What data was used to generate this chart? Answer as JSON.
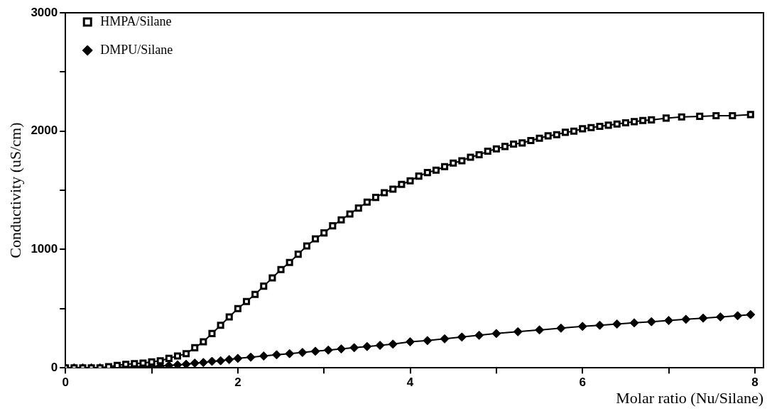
{
  "chart_data": {
    "type": "line",
    "xlabel": "Molar ratio (Nu/Silane)",
    "ylabel": "Conductivity (uS/cm)",
    "xlim": [
      0,
      8.1
    ],
    "ylim": [
      0,
      3000
    ],
    "xticks": [
      0,
      {
        "value": 1,
        "label": null
      },
      2,
      {
        "value": 3,
        "label": null
      },
      4,
      {
        "value": 5,
        "label": null
      },
      6,
      {
        "value": 7,
        "label": null
      },
      8
    ],
    "yticks": [
      0,
      {
        "value": 500,
        "label": null
      },
      1000,
      {
        "value": 1500,
        "label": null
      },
      2000,
      {
        "value": 2500,
        "label": null
      },
      3000
    ],
    "grid": false,
    "legend": "top left",
    "line_style": "solid",
    "series": [
      {
        "name": "HMPA/Silane",
        "color": "#000000",
        "marker": "square",
        "x": [
          0,
          0.1,
          0.2,
          0.3,
          0.4,
          0.5,
          0.6,
          0.7,
          0.8,
          0.9,
          1.0,
          1.1,
          1.2,
          1.3,
          1.4,
          1.5,
          1.6,
          1.7,
          1.8,
          1.9,
          2.0,
          2.1,
          2.2,
          2.3,
          2.4,
          2.5,
          2.6,
          2.7,
          2.8,
          2.9,
          3.0,
          3.1,
          3.2,
          3.3,
          3.4,
          3.5,
          3.6,
          3.7,
          3.8,
          3.9,
          4.0,
          4.1,
          4.2,
          4.3,
          4.4,
          4.5,
          4.6,
          4.7,
          4.8,
          4.9,
          5.0,
          5.1,
          5.2,
          5.3,
          5.4,
          5.5,
          5.6,
          5.7,
          5.8,
          5.9,
          6.0,
          6.1,
          6.2,
          6.3,
          6.4,
          6.5,
          6.6,
          6.7,
          6.8,
          6.97,
          7.15,
          7.36,
          7.55,
          7.74,
          7.95
        ],
        "values": [
          0,
          0,
          0,
          0,
          0,
          10,
          20,
          30,
          35,
          40,
          50,
          60,
          80,
          100,
          120,
          170,
          220,
          290,
          360,
          430,
          500,
          560,
          620,
          690,
          760,
          830,
          890,
          960,
          1030,
          1090,
          1140,
          1200,
          1250,
          1300,
          1350,
          1400,
          1440,
          1480,
          1510,
          1550,
          1580,
          1620,
          1650,
          1670,
          1700,
          1730,
          1750,
          1780,
          1800,
          1830,
          1850,
          1870,
          1890,
          1900,
          1920,
          1940,
          1960,
          1970,
          1990,
          2000,
          2020,
          2030,
          2040,
          2050,
          2060,
          2070,
          2080,
          2090,
          2095,
          2110,
          2120,
          2125,
          2130,
          2130,
          2140
        ]
      },
      {
        "name": "DMPU/Silane",
        "color": "#000000",
        "marker": "diamond",
        "x": [
          0,
          0.1,
          0.2,
          0.3,
          0.4,
          0.5,
          0.6,
          0.7,
          0.8,
          0.9,
          1.0,
          1.1,
          1.2,
          1.3,
          1.4,
          1.5,
          1.6,
          1.7,
          1.8,
          1.9,
          2.0,
          2.15,
          2.3,
          2.45,
          2.6,
          2.75,
          2.9,
          3.05,
          3.2,
          3.35,
          3.5,
          3.65,
          3.8,
          4.0,
          4.2,
          4.4,
          4.6,
          4.8,
          5.0,
          5.25,
          5.5,
          5.75,
          6.0,
          6.2,
          6.4,
          6.6,
          6.8,
          7.0,
          7.2,
          7.4,
          7.6,
          7.8,
          7.95
        ],
        "values": [
          0,
          0,
          0,
          0,
          0,
          0,
          5,
          5,
          8,
          10,
          12,
          15,
          20,
          25,
          30,
          40,
          45,
          55,
          60,
          70,
          80,
          90,
          100,
          110,
          120,
          130,
          140,
          150,
          160,
          170,
          180,
          190,
          200,
          220,
          230,
          245,
          260,
          275,
          290,
          305,
          320,
          335,
          350,
          360,
          370,
          380,
          390,
          400,
          410,
          420,
          430,
          440,
          450
        ]
      }
    ]
  }
}
